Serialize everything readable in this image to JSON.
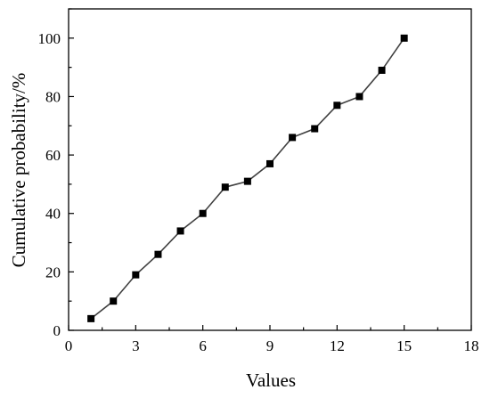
{
  "chart_data": {
    "type": "line",
    "title": "",
    "xlabel": "Values",
    "ylabel": "Cumulative probability/%",
    "xlim": [
      0,
      18
    ],
    "ylim": [
      0,
      110
    ],
    "xticks": [
      0,
      3,
      6,
      9,
      12,
      15,
      18
    ],
    "yticks": [
      0,
      20,
      40,
      60,
      80,
      100
    ],
    "grid": false,
    "legend": "none",
    "series": [
      {
        "marker": "square",
        "color": "#000000",
        "line_color": "#404040",
        "x": [
          1,
          2,
          3,
          4,
          5,
          6,
          7,
          8,
          9,
          10,
          11,
          12,
          13,
          14,
          15
        ],
        "y": [
          4,
          10,
          19,
          26,
          34,
          40,
          49,
          51,
          57,
          66,
          69,
          77,
          80,
          89,
          100
        ]
      }
    ]
  }
}
